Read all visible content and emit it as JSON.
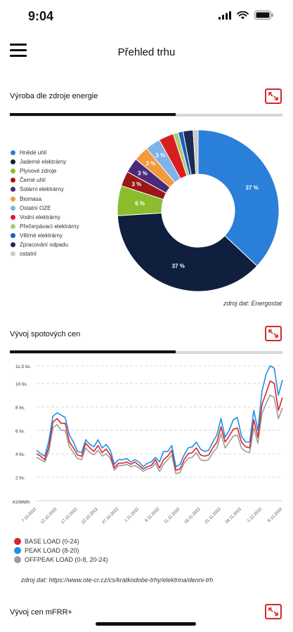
{
  "status_bar": {
    "time": "9:04"
  },
  "header": {
    "title": "Přehled trhu"
  },
  "section_energy": {
    "title": "Výroba dle zdroje energie",
    "source": "zdroj dat: Energostat",
    "chart_data": {
      "type": "pie",
      "categories": [
        "Hnědé uhlí",
        "Jaderné elektrárny",
        "Plynové zdroje",
        "Černé uhlí",
        "Solární elektrárny",
        "Biomasa",
        "Ostatní OZE",
        "Vodní elektrárny",
        "Přečerpávací elektrárny",
        "Větrné elektrárny",
        "Zpracování odpadu",
        "ostatní"
      ],
      "values": [
        37,
        37,
        6,
        3,
        3,
        3,
        3,
        3,
        1,
        1,
        2,
        1
      ],
      "data_labels": [
        "37 %",
        "37 %",
        "6 %",
        "3 %",
        "3 %",
        "3 %",
        "3 %",
        "",
        "",
        "",
        "",
        ""
      ],
      "colors": [
        "#2a7fd8",
        "#0f1f3d",
        "#8bbd2e",
        "#9a1818",
        "#4a2a7a",
        "#f29a3a",
        "#7fb2ea",
        "#d81e1e",
        "#a6cf73",
        "#1e5dbd",
        "#1a2c52",
        "#c9c9c9"
      ],
      "legend": "left"
    }
  },
  "section_spot": {
    "title": "Vývoj spotových cen",
    "source": "zdroj dat: https://www.ote-cr.cz/cs/kratkodobe-trhy/elektrina/denni-trh",
    "chart_data": {
      "type": "line",
      "ylabel": "Kč/MWh",
      "y_ticks": [
        "2 tis.",
        "4 tis.",
        "6 tis.",
        "8 tis.",
        "10 tis.",
        "11,5 tis."
      ],
      "y_tick_values": [
        2000,
        4000,
        6000,
        8000,
        10000,
        11500
      ],
      "ylim": [
        0,
        11500
      ],
      "x_ticks": [
        "7.10.2022",
        "12.10.2022",
        "17.10.2022",
        "22.10.2022",
        "27.10.2022",
        "1.11.2022",
        "6.11.2022",
        "11.11.2022",
        "16.11.2022",
        "21.11.2022",
        "26.11.2022",
        "1.12.2022",
        "6.12.2022"
      ],
      "x_tick_index": [
        0,
        5,
        10,
        15,
        20,
        25,
        30,
        35,
        40,
        45,
        50,
        55,
        60
      ],
      "grid": true,
      "series": [
        {
          "name": "BASE LOAD (0-24)",
          "color": "#d7262b",
          "values": [
            4000,
            3800,
            3500,
            4600,
            6700,
            7000,
            6600,
            6600,
            5000,
            4500,
            3900,
            3800,
            4900,
            4500,
            4200,
            4700,
            4100,
            4400,
            3900,
            2800,
            3200,
            3200,
            3300,
            3100,
            3300,
            3000,
            2700,
            2900,
            3000,
            3500,
            2800,
            3500,
            3800,
            4300,
            2600,
            2700,
            3500,
            4000,
            4100,
            4500,
            3900,
            3800,
            3900,
            4500,
            5000,
            6300,
            5000,
            5500,
            6100,
            6200,
            5000,
            4600,
            4500,
            6900,
            5400,
            8200,
            9200,
            10200,
            10000,
            7700,
            8800
          ]
        },
        {
          "name": "PEAK LOAD (8-20)",
          "color": "#1f8fe4",
          "values": [
            4300,
            4000,
            3800,
            5100,
            7200,
            7500,
            7300,
            7100,
            5600,
            5000,
            4200,
            4100,
            5200,
            4800,
            4600,
            5200,
            4500,
            4800,
            4300,
            3100,
            3500,
            3500,
            3600,
            3300,
            3500,
            3300,
            2900,
            3200,
            3300,
            3700,
            3300,
            4200,
            4200,
            4700,
            2900,
            3100,
            3900,
            4500,
            4600,
            5000,
            4400,
            4200,
            4300,
            5000,
            5600,
            7000,
            5400,
            6000,
            6900,
            7100,
            5500,
            5000,
            5000,
            7700,
            6000,
            9300,
            10800,
            11500,
            11300,
            9000,
            10300
          ]
        },
        {
          "name": "OFFPEAK LOAD (0-8, 20-24)",
          "color": "#9c9c9c",
          "values": [
            3700,
            3500,
            3300,
            4200,
            6200,
            6500,
            6000,
            6000,
            4600,
            4100,
            3600,
            3500,
            4500,
            4100,
            3900,
            4300,
            3800,
            4000,
            3600,
            2600,
            3000,
            3000,
            3100,
            2900,
            3000,
            2800,
            2500,
            2700,
            2800,
            3200,
            2500,
            3100,
            3500,
            3900,
            2300,
            2400,
            3200,
            3600,
            3700,
            4100,
            3500,
            3400,
            3500,
            4100,
            4500,
            5700,
            4500,
            5000,
            5500,
            5600,
            4500,
            4200,
            4100,
            6200,
            4900,
            7400,
            8300,
            9000,
            8800,
            7000,
            7900
          ]
        }
      ],
      "legend": "bottom-left"
    }
  },
  "section_mfrr": {
    "title": "Vývoj cen mFRR+"
  }
}
